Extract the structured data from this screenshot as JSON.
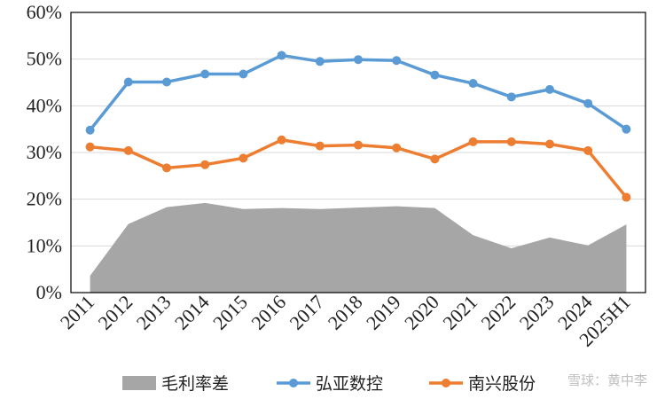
{
  "chart_data": {
    "type": "line",
    "categories": [
      "2011",
      "2012",
      "2013",
      "2014",
      "2015",
      "2016",
      "2017",
      "2018",
      "2019",
      "2020",
      "2021",
      "2022",
      "2023",
      "2024",
      "2025H1"
    ],
    "ylim": [
      0,
      60
    ],
    "yticks": [
      "0%",
      "10%",
      "20%",
      "30%",
      "40%",
      "50%",
      "60%"
    ],
    "grid": true,
    "legend_position": "bottom",
    "series": [
      {
        "name": "毛利率差",
        "kind": "area",
        "color": "#a6a6a6",
        "values": [
          3.6,
          14.7,
          18.3,
          19.2,
          17.9,
          18.1,
          17.9,
          18.2,
          18.5,
          18.1,
          12.3,
          9.5,
          11.8,
          10.1,
          14.6
        ]
      },
      {
        "name": "弘亚数控",
        "kind": "line",
        "color": "#5b9bd5",
        "values": [
          34.8,
          45.1,
          45.1,
          46.8,
          46.8,
          50.8,
          49.5,
          49.9,
          49.7,
          46.6,
          44.8,
          41.9,
          43.5,
          40.5,
          35.0
        ]
      },
      {
        "name": "南兴股份",
        "kind": "line",
        "color": "#ed7d31",
        "values": [
          31.2,
          30.4,
          26.7,
          27.4,
          28.8,
          32.7,
          31.4,
          31.6,
          31.0,
          28.6,
          32.3,
          32.3,
          31.8,
          30.4,
          20.4
        ]
      }
    ]
  },
  "watermark": "雪球：黄中李"
}
